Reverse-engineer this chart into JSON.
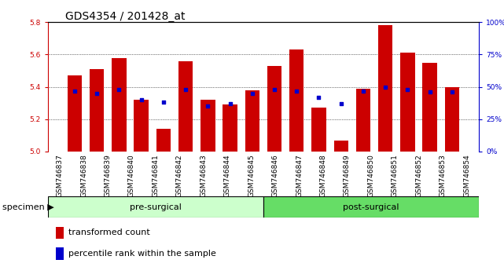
{
  "title": "GDS4354 / 201428_at",
  "samples": [
    "GSM746837",
    "GSM746838",
    "GSM746839",
    "GSM746840",
    "GSM746841",
    "GSM746842",
    "GSM746843",
    "GSM746844",
    "GSM746845",
    "GSM746846",
    "GSM746847",
    "GSM746848",
    "GSM746849",
    "GSM746850",
    "GSM746851",
    "GSM746852",
    "GSM746853",
    "GSM746854"
  ],
  "bar_values": [
    5.47,
    5.51,
    5.58,
    5.32,
    5.14,
    5.56,
    5.32,
    5.29,
    5.38,
    5.53,
    5.63,
    5.27,
    5.07,
    5.39,
    5.78,
    5.61,
    5.55,
    5.4
  ],
  "percentile_values": [
    47,
    45,
    48,
    40,
    38,
    48,
    35,
    37,
    45,
    48,
    47,
    42,
    37,
    47,
    50,
    48,
    46,
    46
  ],
  "bar_bottom": 5.0,
  "ylim_left": [
    5.0,
    5.8
  ],
  "ylim_right": [
    0,
    100
  ],
  "yticks_left": [
    5.0,
    5.2,
    5.4,
    5.6,
    5.8
  ],
  "yticks_right": [
    0,
    25,
    50,
    75,
    100
  ],
  "ytick_labels_right": [
    "0%",
    "25%",
    "50%",
    "75%",
    "100%"
  ],
  "bar_color": "#cc0000",
  "dot_color": "#0000cc",
  "pre_surgical_count": 9,
  "post_surgical_count": 9,
  "pre_label": "pre-surgical",
  "post_label": "post-surgical",
  "specimen_label": "specimen",
  "legend_bar_label": "transformed count",
  "legend_dot_label": "percentile rank within the sample",
  "pre_color": "#ccffcc",
  "post_color": "#66dd66",
  "tick_bg_color": "#c8c8c8",
  "gridline_yticks": [
    5.2,
    5.4,
    5.6
  ],
  "title_fontsize": 10,
  "tick_fontsize": 6.5,
  "label_fontsize": 8,
  "legend_fontsize": 8
}
